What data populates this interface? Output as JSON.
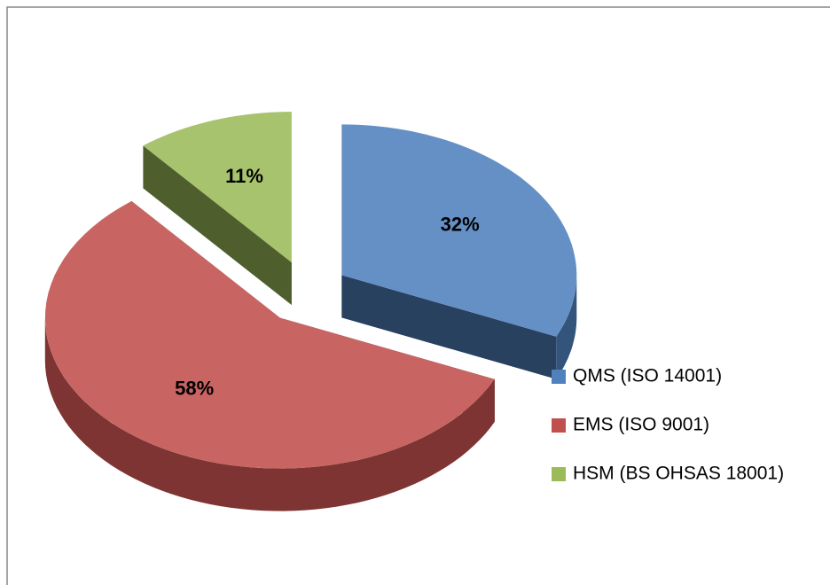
{
  "chart_data": {
    "type": "pie",
    "categories": [
      "QMS (ISO 14001)",
      "EMS (ISO 9001)",
      "HSM (BS OHSAS 18001)"
    ],
    "values": [
      32,
      58,
      11
    ],
    "value_labels": [
      "32%",
      "58%",
      "11%"
    ],
    "colors": [
      "#4f81bd",
      "#c0504d",
      "#9bbb59"
    ],
    "legend": "right"
  }
}
